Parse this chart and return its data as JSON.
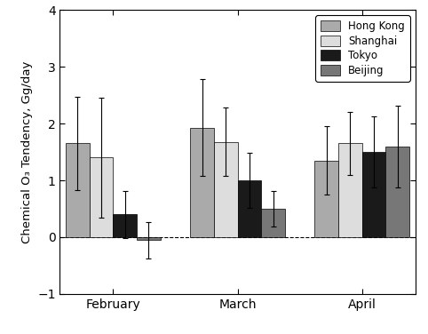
{
  "months": [
    "February",
    "March",
    "April"
  ],
  "cities": [
    "Hong Kong",
    "Shanghai",
    "Tokyo",
    "Beijing"
  ],
  "bar_colors": [
    "#aaaaaa",
    "#dddddd",
    "#1a1a1a",
    "#777777"
  ],
  "values": [
    [
      1.65,
      1.4,
      0.4,
      -0.05
    ],
    [
      1.93,
      1.68,
      1.0,
      0.5
    ],
    [
      1.35,
      1.65,
      1.5,
      1.6
    ]
  ],
  "errors": [
    [
      0.82,
      1.05,
      0.42,
      0.32
    ],
    [
      0.85,
      0.6,
      0.48,
      0.32
    ],
    [
      0.6,
      0.55,
      0.62,
      0.72
    ]
  ],
  "ylabel": "Chemical O₃ Tendency, Gg/day",
  "ylim": [
    -1.0,
    4.0
  ],
  "yticks": [
    -1.0,
    0.0,
    1.0,
    2.0,
    3.0,
    4.0
  ],
  "bar_width": 0.2,
  "group_positions": [
    0.45,
    1.5,
    2.55
  ],
  "xtick_positions": [
    0.45,
    1.5,
    2.55
  ],
  "xlim": [
    0.0,
    3.0
  ],
  "figsize": [
    4.82,
    3.76
  ],
  "dpi": 100
}
